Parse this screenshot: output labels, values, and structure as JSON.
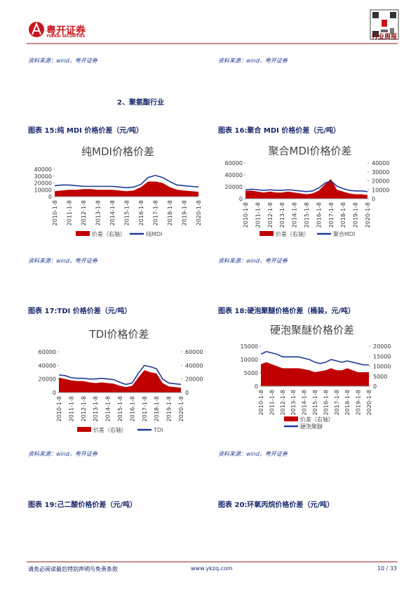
{
  "header": {
    "logo_text": "粤开证券",
    "logo_sub": "YUEKAI SECURITIES",
    "report_type": "行业周报"
  },
  "sources": [
    "资料来源：wind，粤开证券",
    "资料来源：wind，粤开证券",
    "资料来源：wind，粤开证券",
    "资料来源：wind，粤开证券",
    "资料来源：wind，粤开证券",
    "资料来源：wind，粤开证券"
  ],
  "section": "2、聚氨酯行业",
  "captions": [
    "图表 15:纯 MDI 价格价差（元/吨）",
    "图表 16:聚合 MDI 价格价差（元/吨）",
    "图表 17:TDI 价格价差（元/吨）",
    "图表 18:硬泡聚醚价格价差（桶装，元/吨）",
    "图表 19:己二酸价格价差（元/吨）",
    "图表 20:环氧丙烷价格价差（元/吨）"
  ],
  "footer": {
    "disclaimer": "请务必阅读最后特别声明与免责条款",
    "site": "www.ykzq.com",
    "page": "10 / 33"
  },
  "chart_data": [
    {
      "type": "line",
      "title": "纯MDI价格价差",
      "categories": [
        "2010-1-8",
        null,
        "2011-1-8",
        null,
        "2012-1-8",
        null,
        "2013-1-8",
        null,
        "2014-1-8",
        null,
        "2015-1-8",
        null,
        "2016-1-8",
        null,
        "2017-1-8",
        null,
        "2018-1-8",
        null,
        "2019-1-8",
        null,
        "2020-1-8"
      ],
      "ylim": [
        0,
        40000
      ],
      "yticks": [
        0,
        10000,
        20000,
        30000,
        40000
      ],
      "series": [
        {
          "name": "价差（右轴）",
          "type": "area",
          "color": "#c00000",
          "values": [
            8000,
            9000,
            10000,
            10000,
            11000,
            11000,
            10000,
            10000,
            10000,
            9000,
            8000,
            9000,
            14000,
            22000,
            22000,
            20000,
            14000,
            10000,
            9000,
            8000,
            7000
          ]
        },
        {
          "name": "纯MDI",
          "type": "line",
          "color": "#1f3a93",
          "values": [
            16000,
            17000,
            17000,
            16000,
            15000,
            15000,
            15000,
            15000,
            15000,
            14000,
            13000,
            14000,
            18000,
            28000,
            31000,
            28000,
            22000,
            17000,
            16000,
            15000,
            14000
          ]
        }
      ]
    },
    {
      "type": "line",
      "title": "聚合MDI价格价差",
      "categories": [
        "2010-1-8",
        null,
        "2011-1-8",
        null,
        "2012-1-8",
        null,
        "2013-1-8",
        null,
        "2014-1-8",
        null,
        "2015-1-8",
        null,
        "2016-1-8",
        null,
        "2017-1-8",
        null,
        "2018-1-8",
        null,
        "2019-1-8",
        null,
        "2020-1-8"
      ],
      "ylim": [
        0,
        60000
      ],
      "yticks": [
        0,
        20000,
        40000,
        60000
      ],
      "y2lim": [
        0,
        40000
      ],
      "y2ticks": [
        0,
        10000,
        20000,
        30000,
        40000
      ],
      "series": [
        {
          "name": "价差（右轴）",
          "type": "area",
          "axis": "y2",
          "color": "#c00000",
          "values": [
            9000,
            9000,
            8000,
            7000,
            8000,
            7000,
            7000,
            8000,
            7000,
            6000,
            5000,
            6000,
            9000,
            16000,
            22000,
            10000,
            8000,
            6000,
            5000,
            5000,
            4000
          ]
        },
        {
          "name": "聚合MDI",
          "type": "line",
          "color": "#1f3a93",
          "values": [
            15000,
            16000,
            15000,
            14000,
            15000,
            14000,
            14000,
            15000,
            14000,
            13000,
            12000,
            13000,
            18000,
            26000,
            30000,
            21000,
            17000,
            14000,
            13000,
            13000,
            12000
          ]
        }
      ]
    },
    {
      "type": "line",
      "title": "TDI价格价差",
      "categories": [
        "2010-1-8",
        null,
        "2011-1-8",
        null,
        "2012-1-8",
        null,
        "2013-1-8",
        null,
        "2014-1-8",
        null,
        "2015-1-8",
        null,
        "2016-1-8",
        null,
        "2017-1-8",
        null,
        "2018-1-8",
        null,
        "2019-1-8",
        null,
        "2020-1-8"
      ],
      "ylim": [
        0,
        60000
      ],
      "yticks": [
        0,
        20000,
        40000,
        60000
      ],
      "y2lim": [
        0,
        60000
      ],
      "y2ticks": [
        0,
        20000,
        40000,
        60000
      ],
      "series": [
        {
          "name": "价差（右轴）",
          "type": "area",
          "axis": "y2",
          "color": "#c00000",
          "values": [
            22000,
            20000,
            18000,
            17000,
            17000,
            15000,
            14000,
            15000,
            14000,
            13000,
            10000,
            8000,
            10000,
            22000,
            33000,
            30000,
            28000,
            14000,
            9000,
            8000,
            7000
          ]
        },
        {
          "name": "TDI",
          "type": "line",
          "color": "#1f3a93",
          "values": [
            26000,
            25000,
            22000,
            21000,
            21000,
            20000,
            20000,
            21000,
            20000,
            19000,
            15000,
            12000,
            14000,
            28000,
            40000,
            38000,
            35000,
            20000,
            14000,
            13000,
            12000
          ]
        }
      ]
    },
    {
      "type": "line",
      "title": "硬泡聚醚价格价差",
      "categories": [
        "2010-1-8",
        null,
        "2011-1-8",
        null,
        "2012-1-8",
        null,
        "2013-1-8",
        null,
        "2014-1-8",
        null,
        "2015-1-8",
        null,
        "2016-1-8",
        null,
        "2017-1-8",
        null,
        "2018-1-8",
        null,
        "2019-1-8",
        null,
        "2020-1-8"
      ],
      "ylim": [
        0,
        15000
      ],
      "yticks": [
        0,
        5000,
        10000,
        15000
      ],
      "y2lim": [
        0,
        20000
      ],
      "y2ticks": [
        0,
        5000,
        10000,
        15000,
        20000
      ],
      "series": [
        {
          "name": "价差（右轴）",
          "type": "area",
          "axis": "y2",
          "color": "#c00000",
          "values": [
            11000,
            12000,
            11000,
            10000,
            9000,
            9000,
            9000,
            9000,
            8500,
            8000,
            7000,
            7500,
            8000,
            9000,
            8000,
            8000,
            9000,
            8000,
            7000,
            7000,
            7000
          ]
        },
        {
          "name": "硬泡聚醚",
          "type": "line",
          "color": "#1f3a93",
          "values": [
            12000,
            13000,
            12500,
            12000,
            11000,
            11000,
            11000,
            11000,
            10500,
            10000,
            9000,
            8500,
            9000,
            10000,
            9500,
            9000,
            9500,
            9000,
            8500,
            8000,
            8000
          ]
        }
      ]
    }
  ]
}
